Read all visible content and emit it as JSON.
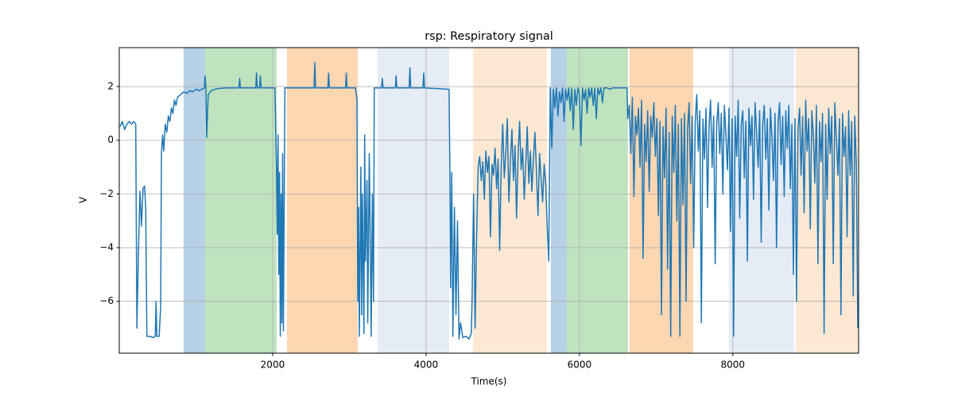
{
  "chart_data": {
    "type": "line",
    "title": "rsp: Respiratory signal",
    "x_label": "Time(s)",
    "y_label": "V",
    "xlim": [
      0,
      9640
    ],
    "ylim": [
      -7.93,
      3.45
    ],
    "xticks": [
      2000,
      4000,
      6000,
      8000
    ],
    "yticks": [
      {
        "value": -6,
        "label": "−6"
      },
      {
        "value": -4,
        "label": "−4"
      },
      {
        "value": -2,
        "label": "−2"
      },
      0,
      2
    ],
    "grid": true,
    "spans": [
      {
        "x0": 839,
        "x1": 1119,
        "color": "#b6d0e6"
      },
      {
        "x0": 1119,
        "x1": 2052,
        "color": "#bfe3bf"
      },
      {
        "x0": 2187,
        "x1": 3109,
        "color": "#fdd6b2"
      },
      {
        "x0": 3368,
        "x1": 4301,
        "color": "#e5ecf6"
      },
      {
        "x0": 4611,
        "x1": 5575,
        "color": "#fde8d4"
      },
      {
        "x0": 5627,
        "x1": 5834,
        "color": "#b6d0e6"
      },
      {
        "x0": 5834,
        "x1": 6632,
        "color": "#bfe3bf"
      },
      {
        "x0": 6653,
        "x1": 7482,
        "color": "#fdd6b2"
      },
      {
        "x0": 7948,
        "x1": 8798,
        "color": "#e5ecf6"
      },
      {
        "x0": 8819,
        "x1": 9640,
        "color": "#fde8d4"
      }
    ],
    "series": [
      {
        "color": "#1f77b4",
        "x": [
          10,
          40,
          70,
          100,
          130,
          160,
          190,
          215,
          230,
          250,
          270,
          290,
          310,
          330,
          345,
          360,
          400,
          440,
          470,
          480,
          490,
          520,
          540,
          550,
          565,
          580,
          600,
          620,
          640,
          660,
          680,
          700,
          720,
          740,
          760,
          800,
          840,
          880,
          920,
          960,
          1000,
          1040,
          1080,
          1110,
          1120,
          1130,
          1140,
          1160,
          1200,
          1250,
          1300,
          1400,
          1500,
          1560,
          1570,
          1580,
          1780,
          1790,
          1800,
          1830,
          1840,
          1850,
          2030,
          2050,
          2060,
          2070,
          2080,
          2090,
          2100,
          2110,
          2120,
          2130,
          2140,
          2160,
          2300,
          2540,
          2550,
          2560,
          2720,
          2730,
          2740,
          2950,
          2960,
          2970,
          3080,
          3100,
          3110,
          3120,
          3130,
          3150,
          3160,
          3170,
          3190,
          3200,
          3210,
          3230,
          3240,
          3260,
          3270,
          3285,
          3300,
          3315,
          3325,
          3420,
          3430,
          3440,
          3600,
          3610,
          3620,
          3780,
          3790,
          3800,
          3960,
          3970,
          3980,
          4300,
          4310,
          4320,
          4335,
          4350,
          4370,
          4390,
          4410,
          4430,
          4450,
          4480,
          4520,
          4560,
          4590,
          4600,
          4620,
          4640,
          4660,
          4680,
          4700,
          4720,
          4740,
          4760,
          4780,
          4800,
          4820,
          4840,
          4860,
          4880,
          4900,
          4920,
          4940,
          4960,
          4980,
          5000,
          5020,
          5040,
          5060,
          5080,
          5100,
          5120,
          5140,
          5160,
          5180,
          5200,
          5220,
          5240,
          5260,
          5280,
          5300,
          5320,
          5340,
          5360,
          5380,
          5400,
          5420,
          5440,
          5460,
          5480,
          5500,
          5520,
          5540,
          5560,
          5580,
          5600,
          5620,
          5640,
          5660,
          5680,
          5700,
          5720,
          5740,
          5760,
          5780,
          5800,
          5820,
          5840,
          5860,
          5880,
          5900,
          5920,
          5940,
          5960,
          5980,
          6000,
          6020,
          6040,
          6060,
          6080,
          6100,
          6120,
          6140,
          6160,
          6180,
          6200,
          6220,
          6240,
          6260,
          6280,
          6300,
          6320,
          6360,
          6400,
          6440,
          6500,
          6560,
          6620,
          6630,
          6650,
          6670,
          6690,
          6710,
          6730,
          6750,
          6770,
          6790,
          6810,
          6830,
          6850,
          6870,
          6890,
          6910,
          6930,
          6950,
          6970,
          6990,
          7010,
          7030,
          7050,
          7070,
          7090,
          7110,
          7130,
          7150,
          7170,
          7190,
          7210,
          7230,
          7250,
          7270,
          7290,
          7310,
          7330,
          7350,
          7370,
          7390,
          7410,
          7430,
          7450,
          7470,
          7490,
          7510,
          7530,
          7550,
          7570,
          7590,
          7610,
          7630,
          7650,
          7670,
          7690,
          7710,
          7730,
          7750,
          7770,
          7790,
          7810,
          7830,
          7850,
          7870,
          7890,
          7910,
          7930,
          7950,
          7970,
          7990,
          8010,
          8030,
          8050,
          8070,
          8090,
          8110,
          8130,
          8150,
          8170,
          8190,
          8210,
          8230,
          8250,
          8270,
          8290,
          8310,
          8330,
          8350,
          8370,
          8390,
          8410,
          8430,
          8450,
          8470,
          8490,
          8510,
          8530,
          8550,
          8570,
          8590,
          8610,
          8630,
          8650,
          8670,
          8690,
          8710,
          8730,
          8750,
          8770,
          8790,
          8810,
          8830,
          8850,
          8870,
          8890,
          8910,
          8930,
          8950,
          8970,
          8990,
          9010,
          9030,
          9050,
          9070,
          9090,
          9110,
          9130,
          9150,
          9170,
          9190,
          9210,
          9230,
          9250,
          9270,
          9290,
          9310,
          9330,
          9350,
          9370,
          9390,
          9410,
          9430,
          9450,
          9470,
          9490,
          9510,
          9530,
          9550,
          9570,
          9590,
          9610,
          9630
        ],
        "values": [
          0.5,
          0.7,
          0.4,
          0.6,
          0.7,
          0.6,
          0.7,
          0.6,
          -7.0,
          -4.2,
          -1.9,
          -3.2,
          -1.8,
          -1.7,
          -2.5,
          -7.3,
          -7.3,
          -7.35,
          -7.3,
          -6.0,
          -7.3,
          -7.3,
          -6.2,
          -0.5,
          0.2,
          -0.4,
          0.6,
          0.3,
          0.9,
          0.7,
          1.2,
          1.0,
          1.5,
          1.3,
          1.6,
          1.7,
          1.8,
          1.75,
          1.85,
          1.8,
          1.9,
          1.85,
          1.9,
          1.95,
          2.4,
          1.9,
          0.1,
          1.7,
          1.85,
          1.9,
          1.93,
          1.95,
          1.95,
          1.95,
          2.3,
          1.95,
          1.95,
          2.5,
          1.95,
          1.95,
          2.4,
          1.95,
          1.95,
          -1,
          -3.5,
          0.2,
          -5,
          -1.2,
          -7.3,
          -2,
          -6.8,
          -0.5,
          -7.1,
          1.95,
          1.95,
          1.95,
          2.9,
          1.95,
          1.95,
          2.5,
          1.95,
          1.95,
          2.5,
          1.95,
          1.95,
          1.5,
          -6,
          -2.5,
          -7.3,
          -1,
          -6.5,
          -2,
          -7.2,
          0.2,
          -4.5,
          -1.5,
          -6.8,
          -0.5,
          -3,
          -7.3,
          -2,
          -6,
          1.95,
          1.95,
          2.3,
          1.95,
          1.95,
          2.4,
          1.95,
          1.95,
          2.7,
          1.95,
          1.95,
          2.5,
          1.95,
          1.9,
          -0.8,
          -5.5,
          -1.2,
          -7.3,
          -2.5,
          -6.5,
          -3,
          -7.4,
          -6.8,
          -7.35,
          -7.3,
          -7.4,
          -7.2,
          -6,
          -2,
          -7,
          -3.5,
          -1,
          -0.6,
          -1.5,
          -0.8,
          -2.2,
          -0.4,
          -1.2,
          -0.6,
          -3.6,
          -0.9,
          -1.3,
          -0.3,
          -1.8,
          -0.7,
          -4.1,
          -1,
          0.6,
          -1.4,
          -0.5,
          0.8,
          -2.3,
          -0.8,
          0.4,
          -1.5,
          -0.2,
          -2.9,
          -0.6,
          0.7,
          -1.1,
          -0.3,
          -2.2,
          -0.9,
          0.5,
          -1.6,
          -0.4,
          -1.9,
          -0.7,
          0.3,
          -1.2,
          -2.8,
          -0.5,
          -1.4,
          -2.3,
          -0.9,
          -1.6,
          -3.2,
          -4.5,
          1.95,
          -0.3,
          1.9,
          1.2,
          1.95,
          0.9,
          1.8,
          1.4,
          1.95,
          0.7,
          1.9,
          1.5,
          1.95,
          1.1,
          1.95,
          0.4,
          1.9,
          1.3,
          1.95,
          1.7,
          -0.2,
          1.95,
          1.5,
          1.9,
          1.0,
          1.95,
          1.6,
          1.95,
          1.3,
          1.95,
          0.8,
          1.95,
          1.7,
          1.95,
          1.4,
          1.95,
          1.95,
          1.9,
          1.95,
          1.95,
          1.95,
          1.95,
          0.8,
          1.3,
          -0.5,
          1.6,
          -2.1,
          0.9,
          0.2,
          1.2,
          -1.0,
          1.5,
          -4.4,
          0.6,
          -0.8,
          1.1,
          -1.9,
          0.9,
          0.1,
          1.4,
          -0.6,
          0.8,
          -2.8,
          0.7,
          -6.5,
          0.5,
          -1.4,
          1.2,
          -4.8,
          0.3,
          -7.3,
          0.9,
          -1.2,
          1.3,
          -3.0,
          0.6,
          -7.3,
          0.8,
          -2.4,
          1.0,
          -6.0,
          0.4,
          1.4,
          -1.6,
          0.9,
          -4.0,
          0.7,
          1.7,
          -0.4,
          1.1,
          -6.8,
          0.8,
          -0.7,
          1.2,
          -2.5,
          0.5,
          1.5,
          -1.0,
          0.9,
          -4.6,
          0.6,
          1.4,
          -0.5,
          1.0,
          -2.0,
          1.3,
          0.2,
          -1.1,
          1.2,
          -3.4,
          0.8,
          -7.3,
          0.9,
          -0.6,
          1.5,
          -2.9,
          0.6,
          1.1,
          -1.4,
          0.7,
          -4.5,
          1.2,
          -0.2,
          0.9,
          -2.2,
          1.4,
          0.3,
          -1.0,
          1.1,
          -3.8,
          0.6,
          1.3,
          -0.7,
          0.8,
          -2.6,
          1.2,
          0.1,
          -1.5,
          1.0,
          -4.0,
          0.7,
          1.4,
          -0.9,
          0.9,
          -2.1,
          1.1,
          -0.3,
          1.3,
          -1.8,
          0.6,
          -5.0,
          0.8,
          -6.0,
          0.4,
          1.2,
          -1.3,
          0.9,
          -2.7,
          1.5,
          -0.4,
          0.8,
          -3.3,
          1.1,
          0.2,
          -1.6,
          1.3,
          -4.6,
          0.7,
          -0.8,
          1.0,
          -7.2,
          0.6,
          -2.2,
          1.2,
          -0.5,
          0.9,
          -4.6,
          1.4,
          0.1,
          -1.3,
          0.8,
          -6.5,
          1.0,
          -0.6,
          0.5,
          -3.6,
          1.1,
          -1.3,
          0.7,
          -5.8,
          0.9,
          -0.9,
          -7.0
        ]
      }
    ]
  }
}
